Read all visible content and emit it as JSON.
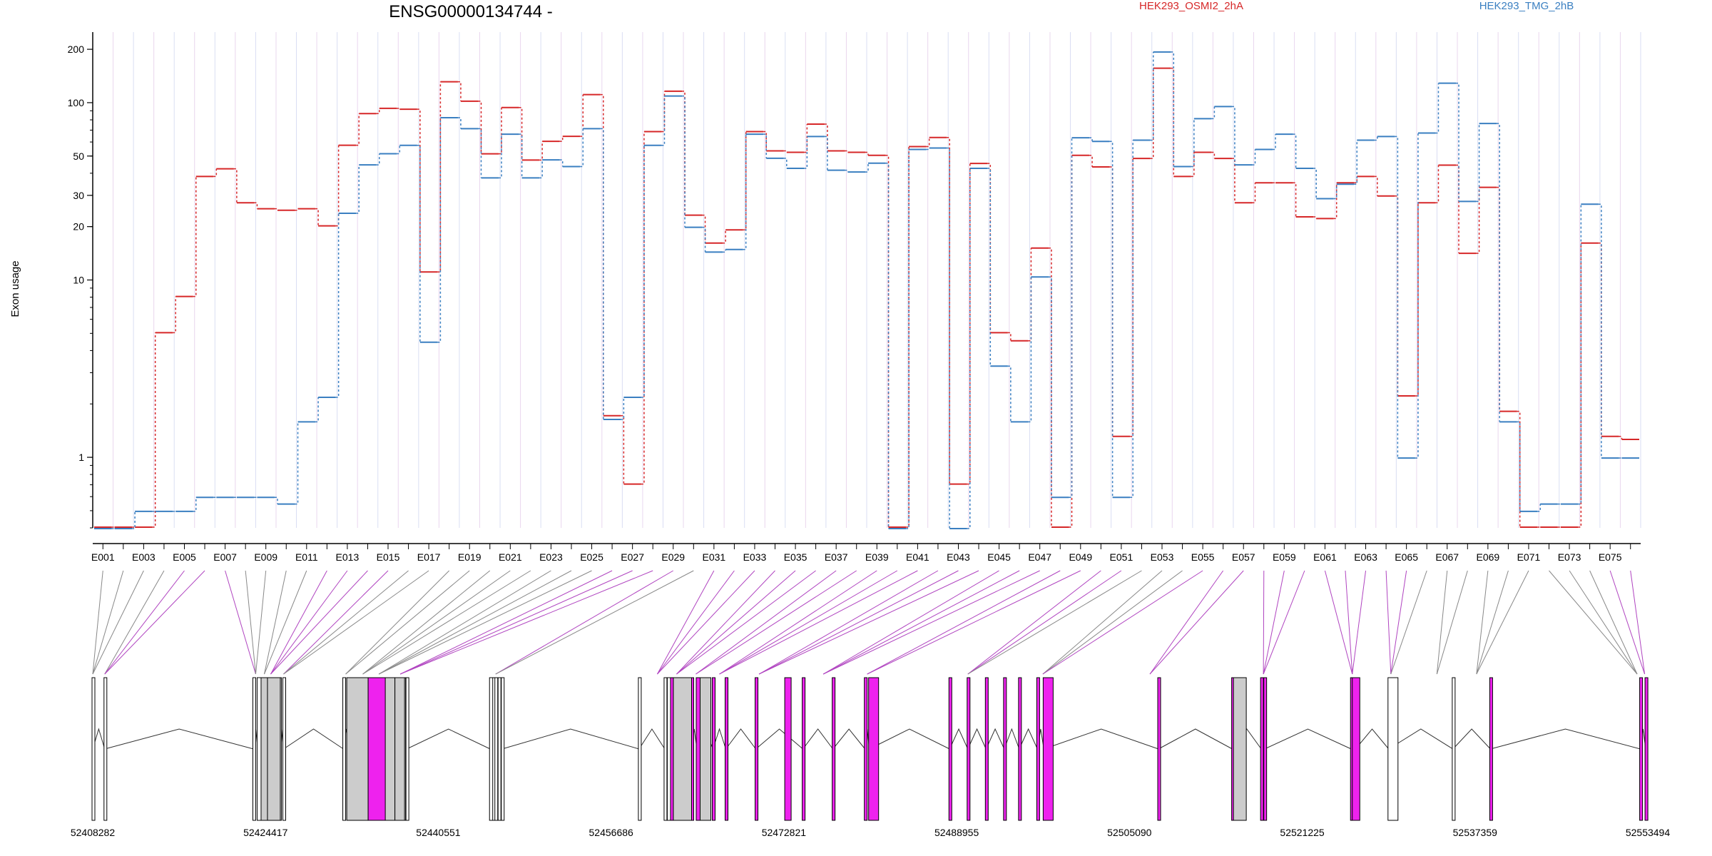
{
  "chart_data": {
    "type": "line",
    "title": "ENSG00000134744 -",
    "ylabel": "Exon usage",
    "yscale": "log",
    "ylim": [
      0.4,
      250
    ],
    "yticks": [
      "1",
      "10",
      "20",
      "30",
      "50",
      "100",
      "200"
    ],
    "ytick_values": [
      1,
      10,
      20,
      30,
      50,
      100,
      200
    ],
    "grid": true,
    "legend_placement": "top",
    "categories": [
      "E001",
      "E002",
      "E003",
      "E004",
      "E005",
      "E006",
      "E007",
      "E008",
      "E009",
      "E010",
      "E011",
      "E012",
      "E013",
      "E014",
      "E015",
      "E016",
      "E017",
      "E018",
      "E019",
      "E020",
      "E021",
      "E022",
      "E023",
      "E024",
      "E025",
      "E026",
      "E027",
      "E028",
      "E029",
      "E030",
      "E031",
      "E032",
      "E033",
      "E034",
      "E035",
      "E036",
      "E037",
      "E038",
      "E039",
      "E040",
      "E041",
      "E042",
      "E043",
      "E044",
      "E045",
      "E046",
      "E047",
      "E048",
      "E049",
      "E050",
      "E051",
      "E052",
      "E053",
      "E054",
      "E055",
      "E056",
      "E057",
      "E058",
      "E059",
      "E060",
      "E061",
      "E062",
      "E063",
      "E064",
      "E065",
      "E066",
      "E067",
      "E068",
      "E069",
      "E070",
      "E071",
      "E072",
      "E073",
      "E074",
      "E075",
      "E076"
    ],
    "xtick_labels": [
      "E001",
      "E003",
      "E005",
      "E007",
      "E009",
      "E011",
      "E013",
      "E015",
      "E017",
      "E019",
      "E021",
      "E023",
      "E025",
      "E027",
      "E029",
      "E031",
      "E033",
      "E035",
      "E037",
      "E039",
      "E041",
      "E043",
      "E045",
      "E047",
      "E049",
      "E051",
      "E053",
      "E055",
      "E057",
      "E059",
      "E061",
      "E063",
      "E065",
      "E067",
      "E069",
      "E071",
      "E073",
      "E075"
    ],
    "series": [
      {
        "name": "HEK293_OSMI2_2hA",
        "color": "#d62728",
        "values": [
          0.4,
          0.4,
          0.4,
          5,
          8,
          38,
          42,
          27,
          25,
          24.5,
          25,
          20,
          57,
          86,
          92,
          91,
          11,
          130,
          101,
          51,
          93,
          47,
          60,
          64,
          110,
          1.7,
          0.7,
          68,
          115,
          23,
          16,
          19,
          68,
          53,
          52,
          75,
          53,
          52,
          50,
          0.4,
          56,
          63,
          0.7,
          45,
          5,
          4.5,
          15,
          0.4,
          50,
          43,
          1.3,
          48,
          155,
          38,
          52,
          48,
          27,
          35,
          35,
          22.5,
          22,
          35,
          38,
          29.5,
          2.2,
          27,
          44,
          14,
          33,
          1.8,
          0.4,
          0.4,
          0.4,
          16,
          1.3,
          1.25
        ]
      },
      {
        "name": "HEK293_TMG_2hB",
        "color": "#3a7fc1",
        "values": [
          0.4,
          0.4,
          0.5,
          0.5,
          0.5,
          0.6,
          0.6,
          0.6,
          0.6,
          0.55,
          1.6,
          2.2,
          24,
          45,
          52,
          58,
          4.5,
          83,
          72,
          38,
          67,
          38,
          48,
          44,
          72,
          1.65,
          2.2,
          58,
          110,
          20,
          14.5,
          15,
          67,
          49,
          43,
          65,
          42,
          41,
          46,
          0.4,
          55,
          56,
          0.4,
          43,
          3.3,
          1.6,
          10.5,
          0.6,
          64,
          61,
          0.6,
          62,
          195,
          44,
          82,
          96,
          45,
          55,
          67,
          43,
          29,
          35,
          62,
          65,
          1,
          68,
          130,
          28,
          77,
          1.6,
          0.5,
          0.55,
          0.55,
          27,
          1,
          1
        ]
      }
    ],
    "gene_model": {
      "coordinate_labels": [
        "52408282",
        "52424417",
        "52440551",
        "52456686",
        "52472821",
        "52488955",
        "52505090",
        "52521225",
        "52537359",
        "52553494"
      ],
      "highlight_color": "#ee22ee",
      "exon_fill_color": "#cccccc",
      "exon_positions": [
        52408282,
        52409400,
        52423300,
        52423700,
        52424100,
        52424600,
        52424850,
        52425700,
        52426100,
        52431700,
        52432200,
        52433200,
        52434200,
        52435900,
        52436700,
        52437300,
        52437600,
        52445400,
        52445700,
        52445900,
        52446200,
        52446500,
        52459300,
        52461700,
        52462000,
        52462300,
        52462600,
        52463100,
        52463400,
        52463800,
        52464200,
        52464700,
        52466200,
        52467400,
        52470200,
        52474600,
        52477400,
        52480400,
        52480800,
        52488300,
        52490000,
        52491700,
        52493400,
        52494800,
        52496500,
        52497100,
        52507800,
        52514700,
        52517400,
        52517700,
        52525800,
        52526200,
        52529300,
        52535300,
        52538800,
        52552800,
        52553300
      ],
      "highlighted_exons": [
        5,
        6,
        7,
        12,
        13,
        14,
        15,
        26,
        27,
        28,
        29,
        31,
        32,
        33,
        34,
        35,
        36,
        37,
        38,
        39,
        40,
        41,
        42,
        43,
        44,
        45,
        46,
        47,
        48,
        49,
        50,
        51,
        55,
        56,
        57,
        58,
        59,
        60,
        61,
        62,
        63,
        64,
        65,
        75,
        76
      ],
      "link_points": [
        52408282,
        52409400,
        52423500,
        52424300,
        52424900,
        52426100,
        52431900,
        52433500,
        52435000,
        52437000,
        52445900,
        52461000,
        52462800,
        52464600,
        52466800,
        52470500,
        52476500,
        52480600,
        52490000,
        52497000,
        52507000,
        52517600,
        52525900,
        52529500,
        52533800,
        52537500,
        52552500,
        52553200
      ]
    }
  },
  "legend": [
    {
      "label": "HEK293_OSMI2_2hA",
      "color": "#d62728"
    },
    {
      "label": "HEK293_TMG_2hB",
      "color": "#3a7fc1"
    }
  ]
}
